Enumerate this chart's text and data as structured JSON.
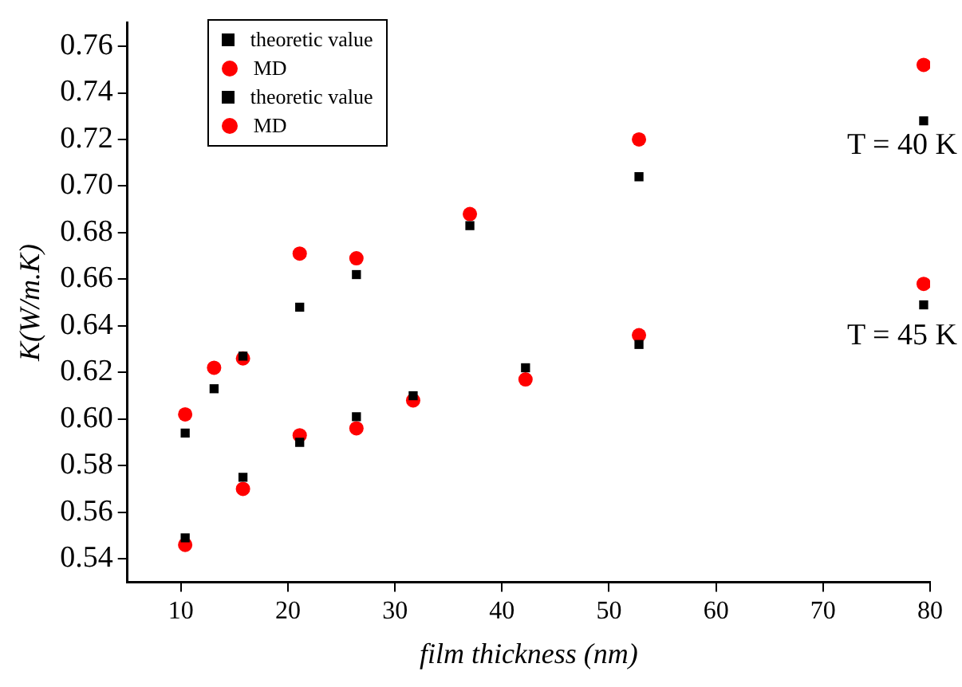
{
  "chart_data": {
    "type": "scatter",
    "xlabel": "film thickness (nm)",
    "ylabel": "K(W/m.K)",
    "xlim": [
      5,
      80
    ],
    "xticks": [
      10,
      20,
      30,
      40,
      50,
      60,
      70,
      80
    ],
    "ylim": [
      0.53,
      0.77
    ],
    "yticks": [
      0.54,
      0.56,
      0.58,
      {
        "value": 0.6,
        "label": "0.60"
      },
      0.62,
      0.64,
      0.66,
      0.68,
      {
        "value": 0.7,
        "label": "0.70"
      },
      0.72,
      0.74,
      0.76
    ],
    "grid": false,
    "legend": "top left",
    "series": [
      {
        "name": "theoretic value",
        "color": "#000000",
        "marker": "square",
        "x": [
          10.4,
          13.1,
          15.8,
          21.1,
          26.4,
          37.0,
          52.8,
          79.4
        ],
        "values": [
          0.594,
          0.613,
          0.627,
          0.648,
          0.662,
          0.683,
          0.704,
          0.728
        ]
      },
      {
        "name": "MD",
        "color": "#ff0000",
        "marker": "circle",
        "x": [
          10.4,
          13.1,
          15.8,
          21.1,
          26.4,
          37.0,
          52.8,
          79.4
        ],
        "values": [
          0.602,
          0.622,
          0.626,
          0.671,
          0.669,
          0.688,
          0.72,
          0.752
        ]
      },
      {
        "name": "theoretic value",
        "color": "#000000",
        "marker": "square",
        "x": [
          10.4,
          15.8,
          21.1,
          26.4,
          31.7,
          42.2,
          52.8,
          79.4
        ],
        "values": [
          0.549,
          0.575,
          0.59,
          0.601,
          0.61,
          0.622,
          0.632,
          0.649
        ]
      },
      {
        "name": "MD",
        "color": "#ff0000",
        "marker": "circle",
        "x": [
          10.4,
          15.8,
          21.1,
          26.4,
          31.7,
          42.2,
          52.8,
          79.4
        ],
        "values": [
          0.546,
          0.57,
          0.593,
          0.596,
          0.608,
          0.617,
          0.636,
          0.658
        ]
      }
    ],
    "annotations": [
      "T = 40 K",
      "T = 45 K"
    ]
  }
}
